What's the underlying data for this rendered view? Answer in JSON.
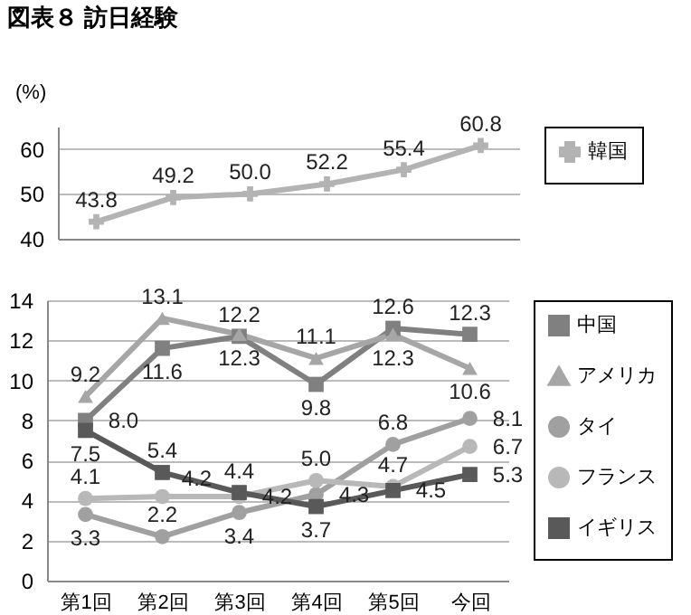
{
  "chart_data": [
    {
      "type": "line",
      "title": "図表８ 訪日経験",
      "ylabel": "(%)",
      "categories": [
        null,
        null,
        null,
        null,
        null,
        null
      ],
      "ylim": [
        40,
        65
      ],
      "yticks": [
        40,
        50,
        60
      ],
      "grid": "y",
      "legend": "right",
      "series": [
        {
          "name": "韓国",
          "color": "#b3b3b3",
          "marker": "cross",
          "values": [
            43.8,
            49.2,
            50.0,
            52.2,
            55.4,
            60.8
          ],
          "value_labels": [
            "43.8",
            "49.2",
            "50.0",
            "52.2",
            "55.4",
            "60.8"
          ]
        }
      ]
    },
    {
      "type": "line",
      "categories": [
        "第1回",
        "第2回",
        "第3回",
        "第4回",
        "第5回",
        "今回"
      ],
      "ylim": [
        0,
        14
      ],
      "yticks": [
        0,
        2,
        4,
        6,
        8,
        10,
        12,
        14
      ],
      "grid": "y",
      "legend": "right",
      "series": [
        {
          "name": "中国",
          "color": "#808080",
          "marker": "square",
          "values": [
            8.0,
            11.6,
            12.2,
            9.8,
            12.6,
            12.3
          ],
          "value_labels": [
            "8.0",
            "11.6",
            "12.2",
            "9.8",
            "12.6",
            "12.3"
          ]
        },
        {
          "name": "アメリカ",
          "color": "#a6a6a6",
          "marker": "triangle",
          "values": [
            9.2,
            13.1,
            12.3,
            11.1,
            12.3,
            10.6
          ],
          "value_labels": [
            "9.2",
            "13.1",
            "12.3",
            "11.1",
            "12.3",
            "10.6"
          ]
        },
        {
          "name": "タイ",
          "color": "#a0a0a0",
          "marker": "circle",
          "values": [
            3.3,
            2.2,
            3.4,
            4.3,
            6.8,
            8.1
          ],
          "value_labels": [
            "3.3",
            "2.2",
            "3.4",
            "4.3",
            "6.8",
            "8.1"
          ]
        },
        {
          "name": "フランス",
          "color": "#b8b8b8",
          "marker": "circle",
          "values": [
            4.1,
            4.2,
            4.2,
            5.0,
            4.7,
            6.7
          ],
          "value_labels": [
            "4.1",
            "4.2",
            "4.2",
            "5.0",
            "4.7",
            "6.7"
          ]
        },
        {
          "name": "イギリス",
          "color": "#595959",
          "marker": "square",
          "values": [
            7.5,
            5.4,
            4.4,
            3.7,
            4.5,
            5.3
          ],
          "value_labels": [
            "7.5",
            "5.4",
            "4.4",
            "3.7",
            "4.5",
            "5.3"
          ]
        }
      ]
    }
  ]
}
